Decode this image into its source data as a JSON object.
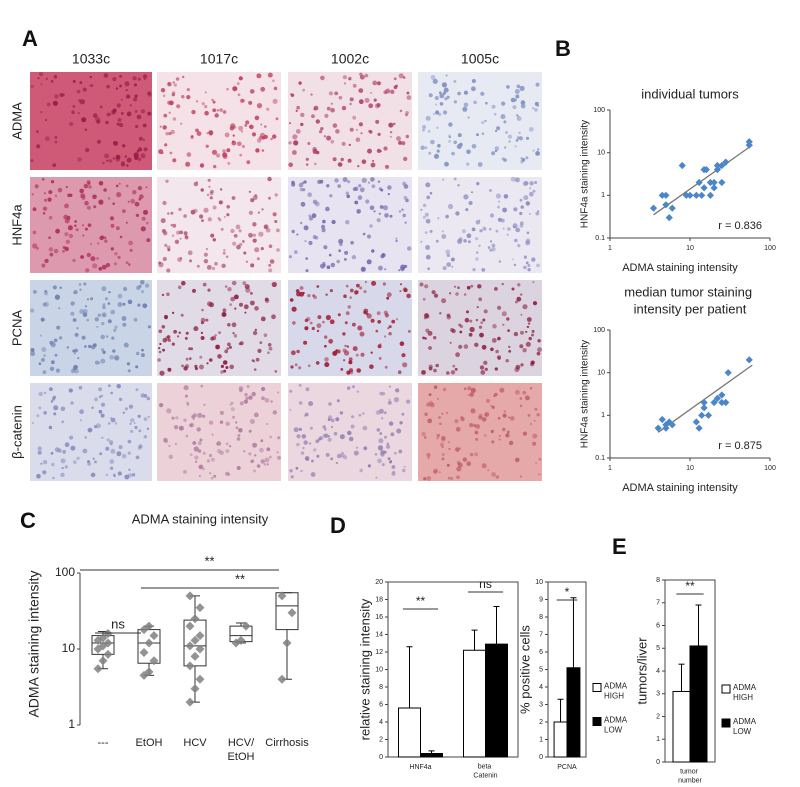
{
  "panel_labels": [
    "A",
    "B",
    "C",
    "D",
    "E"
  ],
  "panel_a": {
    "columns": [
      "1033c",
      "1017c",
      "1002c",
      "1005c"
    ],
    "rows": [
      "ADMA",
      "HNF4a",
      "PCNA",
      "β-catenin"
    ]
  },
  "chart_data": [
    {
      "type": "scatter",
      "title": "individual tumors",
      "xlabel": "ADMA staining intensity",
      "ylabel": "HNF4a staining intensity",
      "log_x": true,
      "log_y": true,
      "xlim": [
        1,
        100
      ],
      "ylim": [
        0.1,
        100
      ],
      "xticks": [
        1,
        10,
        100
      ],
      "yticks": [
        0.1,
        1,
        10,
        100
      ],
      "color": "#4a86c8",
      "x": [
        3.5,
        4.5,
        5,
        5,
        5.5,
        6,
        8,
        9,
        10,
        12,
        13,
        14,
        15,
        15,
        16,
        18,
        18,
        20,
        20,
        22,
        22,
        25,
        28,
        25,
        55,
        55
      ],
      "y": [
        0.5,
        1,
        0.6,
        1,
        0.3,
        0.5,
        5,
        1,
        1,
        1,
        2,
        1,
        1.5,
        4,
        4,
        2,
        1,
        1.5,
        2,
        4,
        5,
        5,
        6,
        2,
        15,
        18
      ],
      "trendline": {
        "x": [
          3.5,
          60
        ],
        "y": [
          0.35,
          15
        ]
      },
      "annotation": "r = 0.836"
    },
    {
      "type": "scatter",
      "title": "median tumor staining intensity per patient",
      "xlabel": "ADMA staining intensity",
      "ylabel": "HNF4a staining intensity",
      "log_x": true,
      "log_y": true,
      "xlim": [
        1,
        100
      ],
      "ylim": [
        0.1,
        100
      ],
      "xticks": [
        1,
        10,
        100
      ],
      "yticks": [
        0.1,
        1,
        10,
        100
      ],
      "color": "#4a86c8",
      "x": [
        4,
        4.5,
        5,
        5,
        5.5,
        6,
        12,
        13,
        14,
        15,
        15,
        17,
        20,
        22,
        25,
        25,
        28,
        30,
        55
      ],
      "y": [
        0.5,
        0.8,
        0.6,
        0.5,
        0.7,
        0.6,
        0.7,
        0.5,
        1,
        2,
        1.5,
        1,
        2,
        2.5,
        2,
        3,
        2,
        10,
        20
      ],
      "trendline": {
        "x": [
          4,
          60
        ],
        "y": [
          0.4,
          15
        ]
      },
      "annotation": "r = 0.875"
    },
    {
      "type": "box",
      "title": "ADMA staining intensity",
      "ylabel": "ADMA staining intensity",
      "log_y": true,
      "ylim": [
        1,
        100
      ],
      "yticks": [
        1,
        10,
        100
      ],
      "color": "#808080",
      "categories": [
        "---",
        "EtOH",
        "HCV",
        "HCV/EtOH",
        "Cirrhosis"
      ],
      "boxes": [
        {
          "min": 5.5,
          "q1": 8.5,
          "median": 12,
          "q3": 15,
          "max": 17,
          "points": [
            5.5,
            7,
            8.5,
            10,
            11,
            12,
            13,
            14,
            16
          ]
        },
        {
          "min": 4.5,
          "q1": 6.5,
          "median": 12,
          "q3": 18,
          "max": 20,
          "points": [
            4.5,
            5,
            7,
            9,
            12,
            15,
            18,
            20
          ]
        },
        {
          "min": 2,
          "q1": 6,
          "median": 11,
          "q3": 24,
          "max": 50,
          "points": [
            2,
            3,
            4,
            6,
            8,
            10,
            11,
            13,
            15,
            20,
            25,
            35,
            50
          ]
        },
        {
          "min": 12,
          "q1": 12.5,
          "median": 15,
          "q3": 20,
          "max": 22,
          "points": [
            12,
            13,
            20
          ]
        },
        {
          "min": 4,
          "q1": 18,
          "median": 37,
          "q3": 55,
          "max": 55,
          "points": [
            4,
            12,
            30,
            50
          ]
        }
      ],
      "annotations": [
        {
          "text": "ns",
          "from": 0,
          "to": 1
        },
        {
          "text": "**",
          "from": 0,
          "to": 4
        },
        {
          "text": "**",
          "from": 1,
          "to": 4
        }
      ]
    },
    {
      "type": "bar",
      "ylabel": "relative staining intensity",
      "categories": [
        "HNF4a",
        "beta Catenin"
      ],
      "ylim": [
        0,
        20
      ],
      "yticks": [
        0,
        2,
        4,
        6,
        8,
        10,
        12,
        14,
        16,
        18,
        20
      ],
      "series": [
        {
          "color": "#ffffff",
          "values": [
            5.6,
            12.2
          ],
          "errors": [
            7.0,
            2.3
          ]
        },
        {
          "color": "#000000",
          "values": [
            0.4,
            12.9
          ],
          "errors": [
            0.3,
            4.3
          ]
        }
      ],
      "annotations": [
        {
          "text": "**",
          "category": 0
        },
        {
          "text": "ns",
          "category": 1
        }
      ]
    },
    {
      "type": "bar",
      "ylabel": "% positive cells",
      "categories": [
        "PCNA"
      ],
      "ylim": [
        0,
        10
      ],
      "yticks": [
        0,
        1,
        2,
        3,
        4,
        5,
        6,
        7,
        8,
        9,
        10
      ],
      "series": [
        {
          "name": "ADMA HIGH",
          "color": "#ffffff",
          "values": [
            2.0
          ],
          "errors": [
            1.3
          ]
        },
        {
          "name": "ADMA LOW",
          "color": "#000000",
          "values": [
            5.1
          ],
          "errors": [
            4.0
          ]
        }
      ],
      "annotations": [
        {
          "text": "*",
          "category": 0
        }
      ],
      "legend": "right"
    },
    {
      "type": "bar",
      "ylabel": "tumors/liver",
      "categories": [
        "tumor number"
      ],
      "ylim": [
        0,
        8
      ],
      "yticks": [
        0,
        1,
        2,
        3,
        4,
        5,
        6,
        7,
        8
      ],
      "series": [
        {
          "name": "ADMA HIGH",
          "color": "#ffffff",
          "values": [
            3.1
          ],
          "errors": [
            1.2
          ]
        },
        {
          "name": "ADMA LOW",
          "color": "#000000",
          "values": [
            5.1
          ],
          "errors": [
            1.8
          ]
        }
      ],
      "annotations": [
        {
          "text": "**",
          "category": 0
        }
      ],
      "legend": "right"
    }
  ]
}
